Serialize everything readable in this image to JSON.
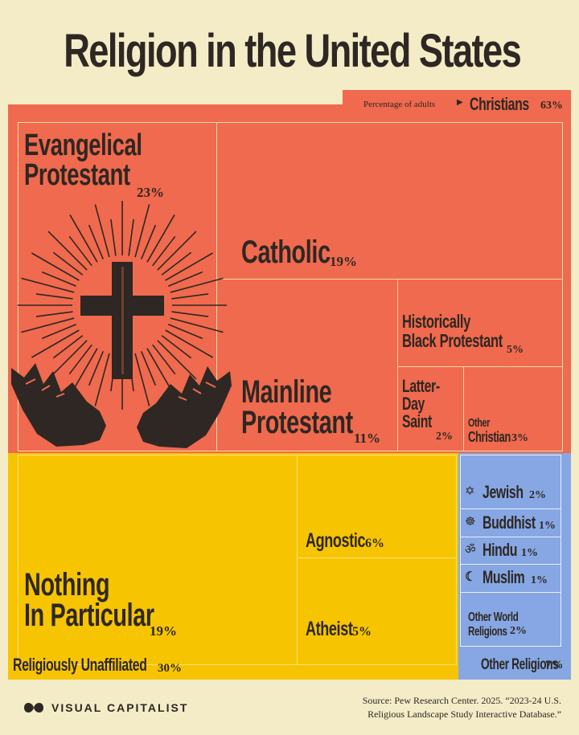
{
  "title": "Religion in the United States",
  "header_note": "Percentage of adults",
  "brand": "VISUAL CAPITALIST",
  "source_line1": "Source: Pew Research Center. 2025. “2023-24 U.S.",
  "source_line2": "Religious Landscape Study Interactive Database.”",
  "colors": {
    "christian": "#ef6a4e",
    "unaffiliated": "#f6c400",
    "other": "#86a7e3",
    "background": "#f3ecc7",
    "ink": "#2e2723"
  },
  "icons": [
    "cross-icon",
    "hands-icon",
    "star-of-david-icon",
    "dharma-wheel-icon",
    "om-icon",
    "crescent-icon",
    "visual-capitalist-logo"
  ],
  "chart_data": {
    "type": "treemap",
    "unit": "%",
    "groups": [
      {
        "name": "Christians",
        "value": 63,
        "label": "63%",
        "items": [
          {
            "name1": "Evangelical",
            "name2": "Protestant",
            "value": 23,
            "label": "23%"
          },
          {
            "name1": "Catholic",
            "name2": "",
            "value": 19,
            "label": "19%"
          },
          {
            "name1": "Mainline",
            "name2": "Protestant",
            "value": 11,
            "label": "11%"
          },
          {
            "name1": "Historically",
            "name2": "Black Protestant",
            "value": 5,
            "label": "5%"
          },
          {
            "name1": "Latter-",
            "name2": "Day",
            "name3": "Saint",
            "value": 2,
            "label": "2%"
          },
          {
            "name1": "Other",
            "name2": "Christian",
            "value": 3,
            "label": "3%"
          }
        ]
      },
      {
        "name": "Religiously Unaffiliated",
        "value": 30,
        "label": "30%",
        "items": [
          {
            "name1": "Nothing",
            "name2": "In Particular",
            "value": 19,
            "label": "19%"
          },
          {
            "name1": "Agnostic",
            "value": 6,
            "label": "6%"
          },
          {
            "name1": "Atheist",
            "value": 5,
            "label": "5%"
          }
        ]
      },
      {
        "name": "Other Religions",
        "value": 7,
        "label": "7%",
        "items": [
          {
            "name1": "Jewish",
            "value": 2,
            "label": "2%",
            "icon": "star-of-david-icon"
          },
          {
            "name1": "Buddhist",
            "value": 1,
            "label": "1%",
            "icon": "dharma-wheel-icon"
          },
          {
            "name1": "Hindu",
            "value": 1,
            "label": "1%",
            "icon": "om-icon"
          },
          {
            "name1": "Muslim",
            "value": 1,
            "label": "1%",
            "icon": "crescent-icon"
          },
          {
            "name1": "Other World",
            "name2": "Religions",
            "value": 2,
            "label": "2%"
          }
        ]
      }
    ]
  }
}
